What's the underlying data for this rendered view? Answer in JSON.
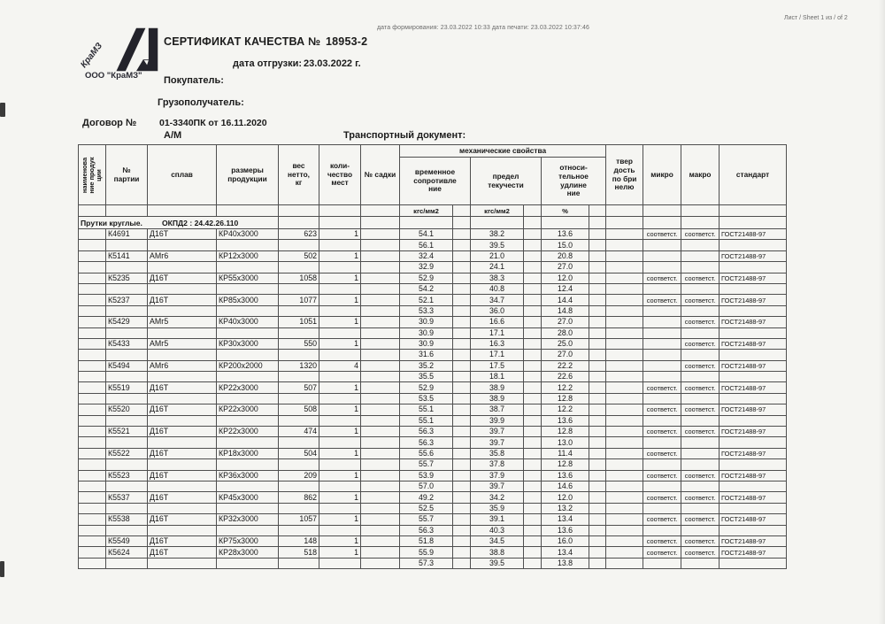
{
  "doc": {
    "sheet_label": "Лист / Sheet   1 из / of   2",
    "meta_line": "дата формирования: 23.03.2022 10:33  дата печати: 23.03.2022 10:37:46",
    "logo_text": "КраМЗ",
    "logo_company": "ООО \"КраМЗ\"",
    "title": "СЕРТИФИКАТ КАЧЕСТВА №",
    "cert_no": "18953-2",
    "ship_date_label": "дата отгрузки:",
    "ship_date": "23.03.2022 г.",
    "buyer_label": "Покупатель:",
    "consignee_label": "Грузополучатель:",
    "contract_label": "Договор №",
    "contract_no": "01-3340ПК от 16.11.2020",
    "contract_mode": "А/М",
    "transport_label": "Транспортный документ:"
  },
  "table": {
    "headers": {
      "product": "наименова\nние продук\nции",
      "batch": "№\nпартии",
      "alloy": "сплав",
      "size": "размеры\nпродукции",
      "weight": "вес\nнетто,\nкг",
      "qty": "коли-\nчество\nмест",
      "sadka": "№ садки",
      "mech_group": "механические свойства",
      "tensile": "временное\nсопротивле\nние",
      "yield": "предел\nтекучести",
      "elongation": "относи-\nтельное\nудлине\nние",
      "hardness": "твер\nдость\nпо бри\nнелю",
      "micro": "микро",
      "macro": "макро",
      "standard": "стандарт"
    },
    "units": {
      "tensile": "кгс/мм2",
      "yield": "кгс/мм2",
      "elongation": "%"
    },
    "section_label": "Прутки круглые.",
    "section_code": "ОКПД2 : 24.42.26.110",
    "rows": [
      [
        "К4691",
        "Д16Т",
        "КР40х3000",
        "623",
        "1",
        "",
        "54.1",
        "38.2",
        "13.6",
        "",
        "соответст.",
        "соответст.",
        "ГОСТ21488-97"
      ],
      [
        "",
        "",
        "",
        "",
        "",
        "",
        "56.1",
        "39.5",
        "15.0",
        "",
        "",
        "",
        ""
      ],
      [
        "К5141",
        "АМг6",
        "КР12х3000",
        "502",
        "1",
        "",
        "32.4",
        "21.0",
        "20.8",
        "",
        "",
        "",
        "ГОСТ21488-97"
      ],
      [
        "",
        "",
        "",
        "",
        "",
        "",
        "32.9",
        "24.1",
        "27.0",
        "",
        "",
        "",
        ""
      ],
      [
        "К5235",
        "Д16Т",
        "КР55х3000",
        "1058",
        "1",
        "",
        "52.9",
        "38.3",
        "12.0",
        "",
        "соответст.",
        "соответст.",
        "ГОСТ21488-97"
      ],
      [
        "",
        "",
        "",
        "",
        "",
        "",
        "54.2",
        "40.8",
        "12.4",
        "",
        "",
        "",
        ""
      ],
      [
        "К5237",
        "Д16Т",
        "КР85х3000",
        "1077",
        "1",
        "",
        "52.1",
        "34.7",
        "14.4",
        "",
        "соответст.",
        "соответст.",
        "ГОСТ21488-97"
      ],
      [
        "",
        "",
        "",
        "",
        "",
        "",
        "53.3",
        "36.0",
        "14.8",
        "",
        "",
        "",
        ""
      ],
      [
        "К5429",
        "АМг5",
        "КР40х3000",
        "1051",
        "1",
        "",
        "30.9",
        "16.6",
        "27.0",
        "",
        "",
        "соответст.",
        "ГОСТ21488-97"
      ],
      [
        "",
        "",
        "",
        "",
        "",
        "",
        "30.9",
        "17.1",
        "28.0",
        "",
        "",
        "",
        ""
      ],
      [
        "К5433",
        "АМг5",
        "КР30х3000",
        "550",
        "1",
        "",
        "30.9",
        "16.3",
        "25.0",
        "",
        "",
        "соответст.",
        "ГОСТ21488-97"
      ],
      [
        "",
        "",
        "",
        "",
        "",
        "",
        "31.6",
        "17.1",
        "27.0",
        "",
        "",
        "",
        ""
      ],
      [
        "К5494",
        "АМг6",
        "КР200х2000",
        "1320",
        "4",
        "",
        "35.2",
        "17.5",
        "22.2",
        "",
        "",
        "соответст.",
        "ГОСТ21488-97"
      ],
      [
        "",
        "",
        "",
        "",
        "",
        "",
        "35.5",
        "18.1",
        "22.6",
        "",
        "",
        "",
        ""
      ],
      [
        "К5519",
        "Д16Т",
        "КР22х3000",
        "507",
        "1",
        "",
        "52.9",
        "38.9",
        "12.2",
        "",
        "соответст.",
        "соответст.",
        "ГОСТ21488-97"
      ],
      [
        "",
        "",
        "",
        "",
        "",
        "",
        "53.5",
        "38.9",
        "12.8",
        "",
        "",
        "",
        ""
      ],
      [
        "К5520",
        "Д16Т",
        "КР22х3000",
        "508",
        "1",
        "",
        "55.1",
        "38.7",
        "12.2",
        "",
        "соответст.",
        "соответст.",
        "ГОСТ21488-97"
      ],
      [
        "",
        "",
        "",
        "",
        "",
        "",
        "55.1",
        "39.9",
        "13.6",
        "",
        "",
        "",
        ""
      ],
      [
        "К5521",
        "Д16Т",
        "КР22х3000",
        "474",
        "1",
        "",
        "56.3",
        "39.7",
        "12.8",
        "",
        "соответст.",
        "соответст.",
        "ГОСТ21488-97"
      ],
      [
        "",
        "",
        "",
        "",
        "",
        "",
        "56.3",
        "39.7",
        "13.0",
        "",
        "",
        "",
        ""
      ],
      [
        "К5522",
        "Д16Т",
        "КР18х3000",
        "504",
        "1",
        "",
        "55.6",
        "35.8",
        "11.4",
        "",
        "соответст.",
        "",
        "ГОСТ21488-97"
      ],
      [
        "",
        "",
        "",
        "",
        "",
        "",
        "55.7",
        "37.8",
        "12.8",
        "",
        "",
        "",
        ""
      ],
      [
        "К5523",
        "Д16Т",
        "КР36х3000",
        "209",
        "1",
        "",
        "53.9",
        "37.9",
        "13.6",
        "",
        "соответст.",
        "соответст.",
        "ГОСТ21488-97"
      ],
      [
        "",
        "",
        "",
        "",
        "",
        "",
        "57.0",
        "39.7",
        "14.6",
        "",
        "",
        "",
        ""
      ],
      [
        "К5537",
        "Д16Т",
        "КР45х3000",
        "862",
        "1",
        "",
        "49.2",
        "34.2",
        "12.0",
        "",
        "соответст.",
        "соответст.",
        "ГОСТ21488-97"
      ],
      [
        "",
        "",
        "",
        "",
        "",
        "",
        "52.5",
        "35.9",
        "13.2",
        "",
        "",
        "",
        ""
      ],
      [
        "К5538",
        "Д16Т",
        "КР32х3000",
        "1057",
        "1",
        "",
        "55.7",
        "39.1",
        "13.4",
        "",
        "соответст.",
        "соответст.",
        "ГОСТ21488-97"
      ],
      [
        "",
        "",
        "",
        "",
        "",
        "",
        "56.3",
        "40.3",
        "13.6",
        "",
        "",
        "",
        ""
      ],
      [
        "К5549",
        "Д16Т",
        "КР75х3000",
        "148",
        "1",
        "",
        "51.8",
        "34.5",
        "16.0",
        "",
        "соответст.",
        "соответст.",
        "ГОСТ21488-97"
      ],
      [
        "К5624",
        "Д16Т",
        "КР28х3000",
        "518",
        "1",
        "",
        "55.9",
        "38.8",
        "13.4",
        "",
        "соответст.",
        "соответст.",
        "ГОСТ21488-97"
      ],
      [
        "",
        "",
        "",
        "",
        "",
        "",
        "57.3",
        "39.5",
        "13.8",
        "",
        "",
        "",
        ""
      ]
    ]
  }
}
